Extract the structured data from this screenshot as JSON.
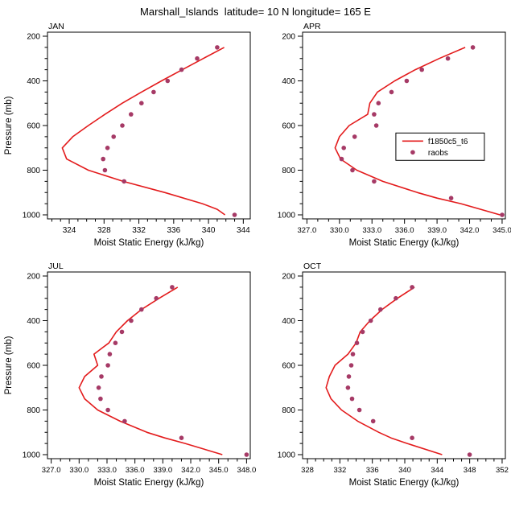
{
  "title": "Marshall_Islands  latitude= 10 N longitude= 165 E",
  "colors": {
    "model_line": "#e31b1c",
    "raobs_dots": "#a63a66",
    "axis": "#000000"
  },
  "legend": {
    "entries": [
      {
        "label": "f1850c5_t6",
        "type": "line"
      },
      {
        "label": "raobs",
        "type": "dot"
      }
    ],
    "shown_in_panel": "APR"
  },
  "axes": {
    "ylabel": "Pressure (mb)",
    "xlabel": "Moist Static Energy (kJ/kg)",
    "ylim": [
      182,
      1018
    ],
    "yticks": [
      200,
      400,
      600,
      800,
      1000
    ],
    "ytick_labels": [
      "200",
      "400",
      "600",
      "800",
      "1000"
    ],
    "yminor_step": 50,
    "y_inverted_pressure_axis": true
  },
  "chart_data": [
    {
      "type": "line",
      "title": "JAN",
      "xlabel": "Moist Static Energy (kJ/kg)",
      "ylabel": "Pressure (mb)",
      "xlim": [
        321.5,
        344.8
      ],
      "xticks": [
        324,
        328,
        332,
        336,
        340,
        344
      ],
      "xtick_labels": [
        "324",
        "328",
        "332",
        "336",
        "340",
        "344"
      ],
      "xminor_step": 1,
      "show_y_title": true,
      "show_legend": false,
      "series": [
        {
          "name": "f1850c5_t6",
          "style": "line",
          "pressure": [
            250,
            300,
            350,
            400,
            450,
            500,
            550,
            600,
            650,
            700,
            750,
            800,
            850,
            900,
            950,
            975,
            1000
          ],
          "values": [
            341.8,
            339.4,
            337.0,
            334.6,
            332.3,
            330.1,
            328.1,
            326.2,
            324.4,
            323.2,
            323.7,
            326.2,
            330.2,
            335.0,
            339.3,
            341.0,
            341.9
          ]
        },
        {
          "name": "raobs",
          "style": "dots",
          "pressure": [
            250,
            300,
            350,
            400,
            450,
            500,
            550,
            600,
            650,
            700,
            750,
            800,
            850,
            1000
          ],
          "values": [
            341.0,
            338.7,
            336.9,
            335.3,
            333.7,
            332.3,
            331.1,
            330.1,
            329.1,
            328.4,
            327.9,
            328.1,
            330.3,
            343.0
          ]
        }
      ]
    },
    {
      "type": "line",
      "title": "APR",
      "xlabel": "Moist Static Energy (kJ/kg)",
      "ylabel": "Pressure (mb)",
      "xlim": [
        326.6,
        345.3
      ],
      "xticks": [
        327,
        330,
        333,
        336,
        339,
        342,
        345
      ],
      "xtick_labels": [
        "327.0",
        "330.0",
        "333.0",
        "336.0",
        "339.0",
        "342.0",
        "345.0"
      ],
      "xminor_step": 1,
      "show_y_title": false,
      "show_legend": true,
      "series": [
        {
          "name": "f1850c5_t6",
          "style": "line",
          "pressure": [
            250,
            300,
            350,
            400,
            450,
            500,
            550,
            600,
            650,
            700,
            750,
            800,
            850,
            900,
            925,
            950,
            1000
          ],
          "values": [
            341.6,
            339.2,
            337.0,
            335.1,
            333.5,
            332.8,
            332.6,
            330.9,
            330.0,
            329.6,
            330.1,
            331.6,
            334.0,
            337.2,
            339.0,
            341.2,
            344.8
          ]
        },
        {
          "name": "raobs",
          "style": "dots",
          "pressure": [
            250,
            300,
            350,
            400,
            450,
            500,
            550,
            600,
            650,
            700,
            750,
            800,
            850,
            925,
            1000
          ],
          "values": [
            342.3,
            340.0,
            337.6,
            336.2,
            334.8,
            333.6,
            333.2,
            333.4,
            331.4,
            330.4,
            330.2,
            331.2,
            333.2,
            340.3,
            345.0
          ]
        }
      ]
    },
    {
      "type": "line",
      "title": "JUL",
      "xlabel": "Moist Static Energy (kJ/kg)",
      "ylabel": "Pressure (mb)",
      "xlim": [
        326.6,
        348.4
      ],
      "xticks": [
        327,
        330,
        333,
        336,
        339,
        342,
        345,
        348
      ],
      "xtick_labels": [
        "327.0",
        "330.0",
        "333.0",
        "336.0",
        "339.0",
        "342.0",
        "345.0",
        "348.0"
      ],
      "xminor_step": 1,
      "show_y_title": true,
      "show_legend": false,
      "series": [
        {
          "name": "f1850c5_t6",
          "style": "line",
          "pressure": [
            250,
            300,
            350,
            400,
            450,
            500,
            550,
            600,
            650,
            700,
            750,
            800,
            850,
            900,
            925,
            950,
            1000
          ],
          "values": [
            340.6,
            338.6,
            336.7,
            335.2,
            334.0,
            333.2,
            331.6,
            332.0,
            330.6,
            330.0,
            330.6,
            332.0,
            334.4,
            337.3,
            339.2,
            341.4,
            345.4
          ]
        },
        {
          "name": "raobs",
          "style": "dots",
          "pressure": [
            250,
            300,
            350,
            400,
            450,
            500,
            550,
            600,
            650,
            700,
            750,
            800,
            850,
            925,
            1000
          ],
          "values": [
            340.0,
            338.3,
            336.7,
            335.6,
            334.6,
            333.9,
            333.3,
            333.1,
            332.4,
            332.1,
            332.3,
            333.1,
            334.9,
            341.0,
            348.0
          ]
        }
      ]
    },
    {
      "type": "line",
      "title": "OCT",
      "xlabel": "Moist Static Energy (kJ/kg)",
      "ylabel": "Pressure (mb)",
      "xlim": [
        327.4,
        352.4
      ],
      "xticks": [
        328,
        332,
        336,
        340,
        344,
        348,
        352
      ],
      "xtick_labels": [
        "328",
        "332",
        "336",
        "340",
        "344",
        "348",
        "352"
      ],
      "xminor_step": 1,
      "show_y_title": false,
      "show_legend": false,
      "series": [
        {
          "name": "f1850c5_t6",
          "style": "line",
          "pressure": [
            250,
            300,
            350,
            400,
            450,
            500,
            550,
            600,
            650,
            700,
            750,
            800,
            850,
            900,
            925,
            950,
            1000
          ],
          "values": [
            341.2,
            339.1,
            337.2,
            335.7,
            334.5,
            334.0,
            333.0,
            331.4,
            330.7,
            330.3,
            330.9,
            332.2,
            334.2,
            336.8,
            338.3,
            340.3,
            344.6
          ]
        },
        {
          "name": "raobs",
          "style": "dots",
          "pressure": [
            250,
            300,
            350,
            400,
            450,
            500,
            550,
            600,
            650,
            700,
            750,
            800,
            850,
            925,
            1000
          ],
          "values": [
            340.9,
            338.9,
            337.0,
            335.8,
            334.8,
            334.1,
            333.6,
            333.4,
            333.1,
            333.0,
            333.5,
            334.4,
            336.1,
            340.9,
            348.0
          ]
        }
      ]
    }
  ]
}
